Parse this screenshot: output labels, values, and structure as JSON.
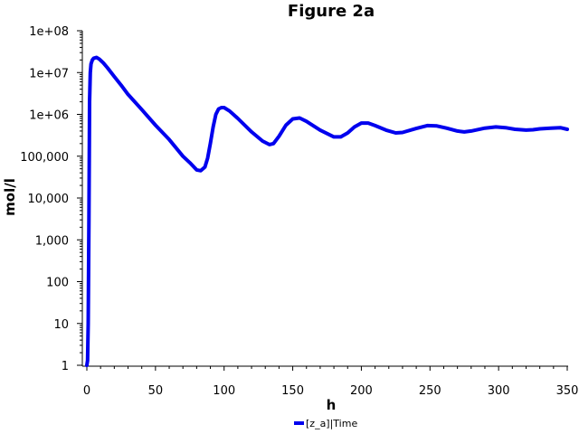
{
  "chart_data": {
    "type": "line",
    "title": "Figure 2a",
    "xlabel": "h",
    "ylabel": "mol/l",
    "xlim": [
      0,
      350
    ],
    "ylim": [
      1,
      100000000
    ],
    "yscale": "log",
    "grid": false,
    "legend_position": "bottom-center",
    "x_ticks": [
      0,
      50,
      100,
      150,
      200,
      250,
      300,
      350
    ],
    "x_tick_labels": [
      "0",
      "50",
      "100",
      "150",
      "200",
      "250",
      "300",
      "350"
    ],
    "y_ticks": [
      1,
      10,
      100,
      1000,
      10000,
      100000,
      1000000,
      10000000,
      100000000
    ],
    "y_tick_labels": [
      "1",
      "10",
      "100",
      "1,000",
      "10,000",
      "100,000",
      "1e+06",
      "1e+07",
      "1e+08"
    ],
    "series": [
      {
        "name": "[z_a]|Time",
        "color": "#0000ee",
        "x": [
          0,
          0.5,
          1,
          1.5,
          2,
          2.5,
          3,
          4,
          5,
          7,
          9,
          12,
          15,
          20,
          25,
          30,
          40,
          50,
          60,
          70,
          75,
          80,
          83,
          86,
          88,
          90,
          92,
          94,
          96,
          98,
          100,
          104,
          110,
          120,
          128,
          133,
          136,
          140,
          145,
          150,
          155,
          160,
          170,
          180,
          185,
          190,
          195,
          200,
          205,
          210,
          218,
          225,
          230,
          240,
          248,
          255,
          262,
          270,
          275,
          280,
          290,
          298,
          305,
          312,
          320,
          325,
          330,
          338,
          345,
          350
        ],
        "y": [
          1,
          1.3,
          10,
          3000,
          2000000,
          10000000,
          16000000,
          20000000,
          22000000,
          23000000,
          21000000,
          17000000,
          13000000,
          8000000,
          5000000,
          3000000,
          1300000,
          550000,
          250000,
          100000,
          70000,
          47000,
          45000,
          55000,
          90000,
          200000,
          500000,
          1000000,
          1350000,
          1450000,
          1450000,
          1200000,
          800000,
          380000,
          230000,
          190000,
          200000,
          300000,
          550000,
          780000,
          820000,
          680000,
          420000,
          290000,
          290000,
          360000,
          500000,
          620000,
          620000,
          540000,
          420000,
          360000,
          370000,
          460000,
          540000,
          530000,
          470000,
          400000,
          380000,
          400000,
          470000,
          500000,
          480000,
          440000,
          420000,
          430000,
          450000,
          470000,
          480000,
          440000
        ]
      }
    ]
  }
}
